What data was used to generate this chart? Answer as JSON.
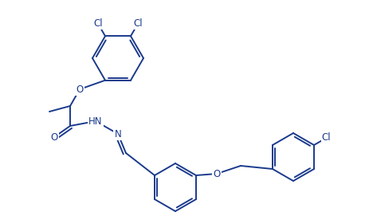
{
  "bg": "#ffffff",
  "lc": "#1a3a8c",
  "lw": 1.4,
  "fs": 8.5
}
